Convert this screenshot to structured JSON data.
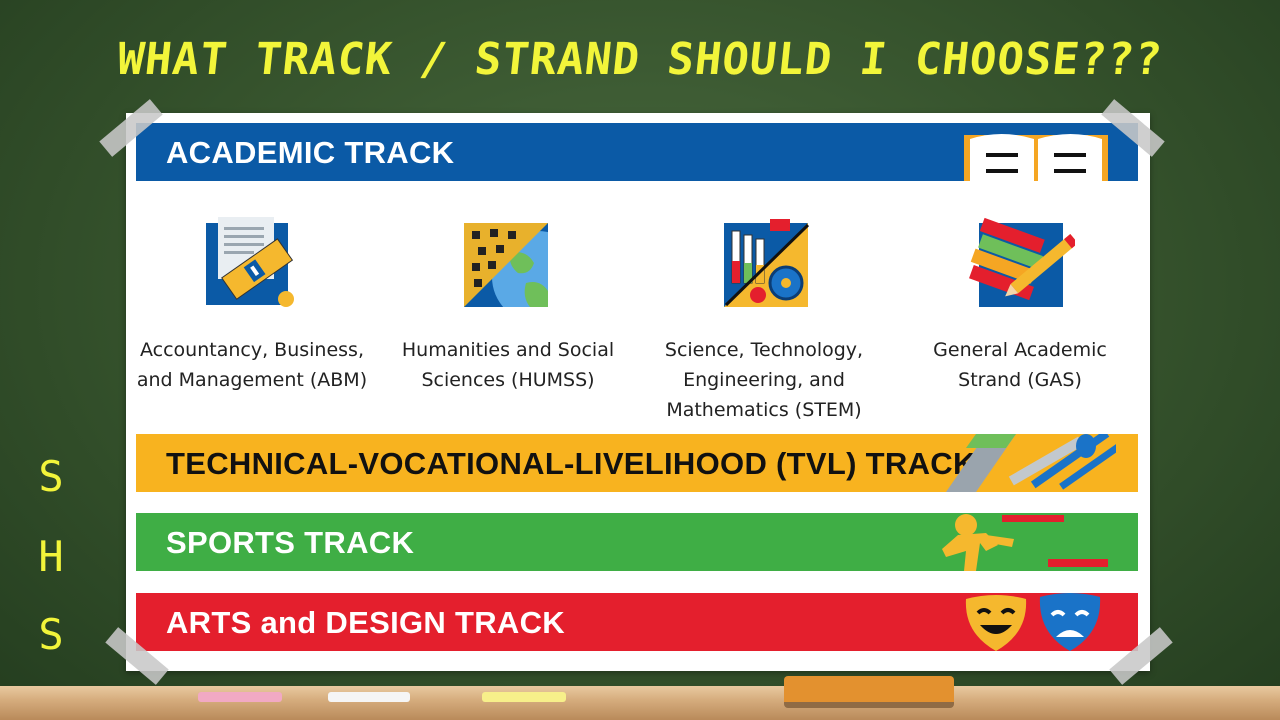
{
  "page": {
    "title": "WHAT TRACK / STRAND SHOULD I CHOOSE???",
    "side_letters": [
      "S",
      "H",
      "S"
    ]
  },
  "tracks": {
    "academic": {
      "label": "ACADEMIC TRACK",
      "color": "#0b5aa6"
    },
    "tvl": {
      "label": "TECHNICAL-VOCATIONAL-LIVELIHOOD (TVL) TRACK",
      "color": "#f8b31f"
    },
    "sports": {
      "label": "SPORTS TRACK",
      "color": "#3fae45"
    },
    "arts": {
      "label": "ARTS and DESIGN TRACK",
      "color": "#e41f2d"
    }
  },
  "strands": [
    {
      "line1": "Accountancy, Business,",
      "line2": "and Management (ABM)",
      "line3": "",
      "icon": "accounting-icon"
    },
    {
      "line1": "Humanities and Social",
      "line2": "Sciences (HUMSS)",
      "line3": "",
      "icon": "globe-puzzle-icon"
    },
    {
      "line1": "Science, Technology,",
      "line2": "Engineering, and",
      "line3": "Mathematics (STEM)",
      "icon": "science-gears-icon"
    },
    {
      "line1": "General Academic",
      "line2": "Strand (GAS)",
      "line3": "",
      "icon": "books-pencil-icon"
    }
  ]
}
